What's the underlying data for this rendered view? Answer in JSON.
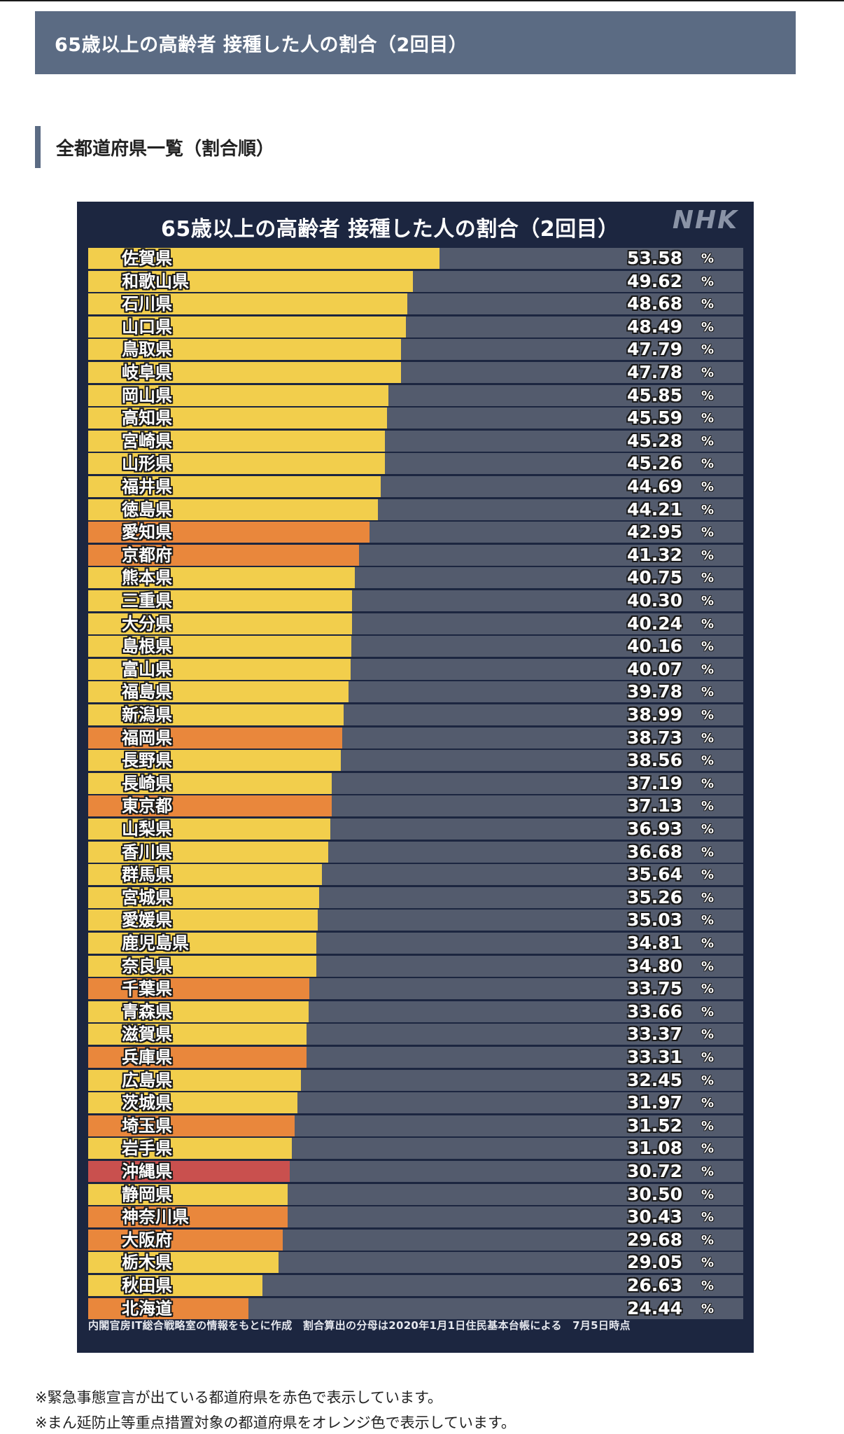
{
  "header": {
    "title": "65歳以上の高齢者 接種した人の割合（2回目）"
  },
  "section": {
    "heading": "全都道府県一覧（割合順）"
  },
  "chart": {
    "title": "65歳以上の高齢者 接種した人の割合（2回目）",
    "logo": "NHK",
    "percent_unit": "%",
    "source": "内閣官房IT総合戦略室の情報をもとに作成　割合算出の分母は2020年1月1日住民基本台帳による　7月5日時点",
    "colors": {
      "normal": "#f2ce4c",
      "priority": "#e9873c",
      "emergency": "#c9504e",
      "track": "#535b6d",
      "panel": "#1c2640"
    }
  },
  "chart_data": {
    "type": "bar",
    "orientation": "horizontal",
    "title": "65歳以上の高齢者 接種した人の割合（2回目）",
    "xlim": [
      0,
      100
    ],
    "categories": [
      "佐賀県",
      "和歌山県",
      "石川県",
      "山口県",
      "鳥取県",
      "岐阜県",
      "岡山県",
      "高知県",
      "宮崎県",
      "山形県",
      "福井県",
      "徳島県",
      "愛知県",
      "京都府",
      "熊本県",
      "三重県",
      "大分県",
      "島根県",
      "富山県",
      "福島県",
      "新潟県",
      "福岡県",
      "長野県",
      "長崎県",
      "東京都",
      "山梨県",
      "香川県",
      "群馬県",
      "宮城県",
      "愛媛県",
      "鹿児島県",
      "奈良県",
      "千葉県",
      "青森県",
      "滋賀県",
      "兵庫県",
      "広島県",
      "茨城県",
      "埼玉県",
      "岩手県",
      "沖縄県",
      "静岡県",
      "神奈川県",
      "大阪府",
      "栃木県",
      "秋田県",
      "北海道"
    ],
    "values": [
      53.58,
      49.62,
      48.68,
      48.49,
      47.79,
      47.78,
      45.85,
      45.59,
      45.28,
      45.26,
      44.69,
      44.21,
      42.95,
      41.32,
      40.75,
      40.3,
      40.24,
      40.16,
      40.07,
      39.78,
      38.99,
      38.73,
      38.56,
      37.19,
      37.13,
      36.93,
      36.68,
      35.64,
      35.26,
      35.03,
      34.81,
      34.8,
      33.75,
      33.66,
      33.37,
      33.31,
      32.45,
      31.97,
      31.52,
      31.08,
      30.72,
      30.5,
      30.43,
      29.68,
      29.05,
      26.63,
      24.44
    ],
    "labels": [
      "53.58",
      "49.62",
      "48.68",
      "48.49",
      "47.79",
      "47.78",
      "45.85",
      "45.59",
      "45.28",
      "45.26",
      "44.69",
      "44.21",
      "42.95",
      "41.32",
      "40.75",
      "40.30",
      "40.24",
      "40.16",
      "40.07",
      "39.78",
      "38.99",
      "38.73",
      "38.56",
      "37.19",
      "37.13",
      "36.93",
      "36.68",
      "35.64",
      "35.26",
      "35.03",
      "34.81",
      "34.80",
      "33.75",
      "33.66",
      "33.37",
      "33.31",
      "32.45",
      "31.97",
      "31.52",
      "31.08",
      "30.72",
      "30.50",
      "30.43",
      "29.68",
      "29.05",
      "26.63",
      "24.44"
    ],
    "status": [
      "n",
      "n",
      "n",
      "n",
      "n",
      "n",
      "n",
      "n",
      "n",
      "n",
      "n",
      "n",
      "p",
      "p",
      "n",
      "n",
      "n",
      "n",
      "n",
      "n",
      "n",
      "p",
      "n",
      "n",
      "p",
      "n",
      "n",
      "n",
      "n",
      "n",
      "n",
      "n",
      "p",
      "n",
      "n",
      "p",
      "n",
      "n",
      "p",
      "n",
      "e",
      "n",
      "p",
      "p",
      "n",
      "n",
      "p"
    ]
  },
  "footnotes": [
    "※緊急事態宣言が出ている都道府県を赤色で表示しています。",
    "※まん延防止等重点措置対象の都道府県をオレンジ色で表示しています。"
  ]
}
